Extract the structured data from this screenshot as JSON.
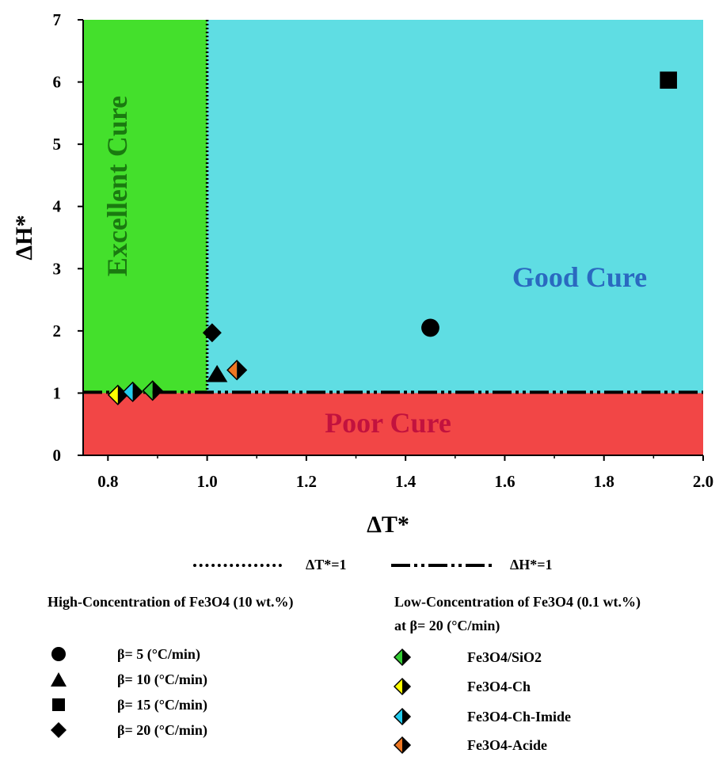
{
  "chart_data": {
    "type": "scatter",
    "xlabel": "ΔT*",
    "ylabel": "ΔH*",
    "xlim": [
      0.75,
      2.0
    ],
    "ylim": [
      0,
      7
    ],
    "xticks": [
      "0.8",
      "1.0",
      "1.2",
      "1.4",
      "1.6",
      "1.8",
      "2.0"
    ],
    "yticks": [
      "0",
      "1",
      "2",
      "3",
      "4",
      "5",
      "6",
      "7"
    ],
    "regions": [
      {
        "label": "Excellent Cure",
        "color": "#44e02c",
        "x": [
          0.75,
          1.0
        ],
        "y": [
          1.0,
          7.0
        ],
        "label_color": "#1a7a10"
      },
      {
        "label": "Good Cure",
        "color": "#5fdde3",
        "x": [
          1.0,
          2.0
        ],
        "y": [
          1.0,
          7.0
        ],
        "label_color": "#2a69c0"
      },
      {
        "label": "Poor Cure",
        "color": "#f24646",
        "x": [
          0.75,
          2.0
        ],
        "y": [
          0,
          1.0
        ],
        "label_color": "#c2123e"
      }
    ],
    "reference_lines": [
      {
        "name": "ΔT*=1",
        "style": "dotted",
        "orientation": "vertical",
        "value": 1.0
      },
      {
        "name": "ΔH*=1",
        "style": "dash-dot-dot",
        "orientation": "horizontal",
        "value": 1.0
      }
    ],
    "series": [
      {
        "name": "β= 5 (°C/min)",
        "marker": "circle",
        "color": "#000000",
        "points": [
          [
            1.45,
            2.05
          ]
        ]
      },
      {
        "name": "β= 10 (°C/min)",
        "marker": "triangle",
        "color": "#000000",
        "points": [
          [
            1.02,
            1.3
          ]
        ]
      },
      {
        "name": "β= 15 (°C/min)",
        "marker": "square",
        "color": "#000000",
        "points": [
          [
            1.93,
            6.03
          ]
        ]
      },
      {
        "name": "β= 20 (°C/min)",
        "marker": "diamond",
        "color": "#000000",
        "points": [
          [
            1.01,
            1.97
          ]
        ]
      },
      {
        "name": "Fe3O4/SiO2",
        "marker": "half-diamond",
        "color": "#33cc33",
        "points": [
          [
            0.89,
            1.04
          ]
        ]
      },
      {
        "name": "Fe3O4-Ch",
        "marker": "half-diamond",
        "color": "#ffff00",
        "points": [
          [
            0.82,
            0.97
          ]
        ]
      },
      {
        "name": "Fe3O4-Ch-Imide",
        "marker": "half-diamond",
        "color": "#22ccee",
        "points": [
          [
            0.85,
            1.02
          ]
        ]
      },
      {
        "name": "Fe3O4-Acide",
        "marker": "half-diamond",
        "color": "#ee7722",
        "points": [
          [
            1.06,
            1.37
          ]
        ]
      }
    ]
  },
  "legend": {
    "line_dotted_label": "ΔT*=1",
    "line_dashdot_label": "ΔH*=1",
    "high_conc_title": "High-Concentration of Fe3O4  (10 wt.%)",
    "low_conc_title_1": "Low-Concentration of Fe3O4 (0.1 wt.%)",
    "low_conc_title_2": "at β= 20 (°C/min)",
    "high_items": [
      {
        "marker": "circle",
        "label": "β= 5 (°C/min)"
      },
      {
        "marker": "triangle",
        "label": "β= 10 (°C/min)"
      },
      {
        "marker": "square",
        "label": "β= 15 (°C/min)"
      },
      {
        "marker": "diamond",
        "label": "β= 20 (°C/min)"
      }
    ],
    "low_items": [
      {
        "color": "#33cc33",
        "label": "Fe3O4/SiO2"
      },
      {
        "color": "#ffff00",
        "label": "Fe3O4-Ch"
      },
      {
        "color": "#22ccee",
        "label": "Fe3O4-Ch-Imide"
      },
      {
        "color": "#ee7722",
        "label": "Fe3O4-Acide"
      }
    ]
  }
}
